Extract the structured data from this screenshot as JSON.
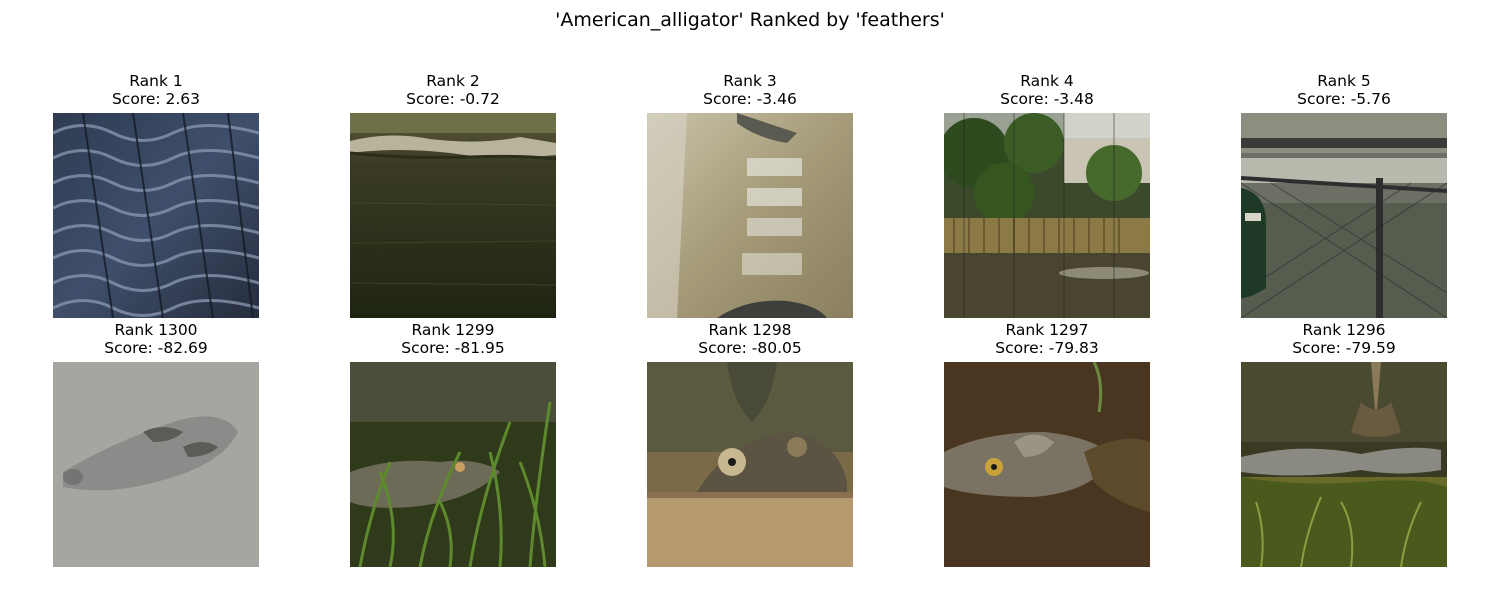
{
  "title": "'American_alligator' Ranked by 'feathers'",
  "top_row": [
    {
      "rank": "Rank 1",
      "score": "Score: 2.63",
      "image": "alligator-scales-closeup"
    },
    {
      "rank": "Rank 2",
      "score": "Score: -0.72",
      "image": "alligator-in-dark-water"
    },
    {
      "rank": "Rank 3",
      "score": "Score: -3.46",
      "image": "alligator-murky-water-reflection"
    },
    {
      "rank": "Rank 4",
      "score": "Score: -3.48",
      "image": "zoo-pond-with-trees"
    },
    {
      "rank": "Rank 5",
      "score": "Score: -5.76",
      "image": "fence-and-pond-with-sign"
    }
  ],
  "bottom_row": [
    {
      "rank": "Rank 1300",
      "score": "Score: -82.69",
      "image": "alligator-head-gray-water"
    },
    {
      "rank": "Rank 1299",
      "score": "Score: -81.95",
      "image": "alligator-in-grass"
    },
    {
      "rank": "Rank 1298",
      "score": "Score: -80.05",
      "image": "alligator-eyes-over-log"
    },
    {
      "rank": "Rank 1297",
      "score": "Score: -79.83",
      "image": "alligator-head-brown-water"
    },
    {
      "rank": "Rank 1296",
      "score": "Score: -79.59",
      "image": "alligator-on-mossy-bank"
    }
  ]
}
